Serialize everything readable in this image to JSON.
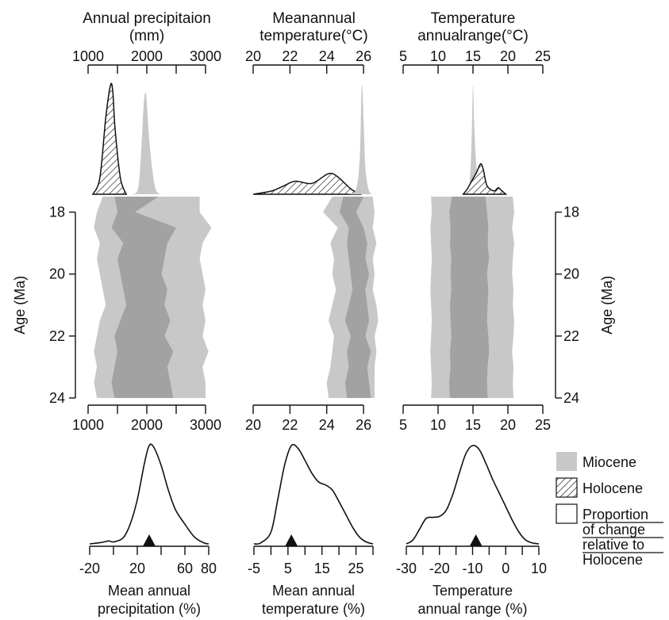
{
  "colors": {
    "miocene": "#c8c8c8",
    "core": "#a2a2a2",
    "hatch": "#111111"
  },
  "legend": {
    "miocene": "Miocene",
    "holocene": "Holocene",
    "proportion": [
      "Proportion",
      "of change",
      "relative to",
      "Holocene"
    ]
  },
  "chart_data": [
    {
      "type": "area",
      "panel": "precipitation-top-density",
      "title": [
        "Annual precipitaion",
        "(mm)"
      ],
      "xlim": [
        1000,
        3000
      ],
      "ticks": [
        1000,
        2000,
        3000
      ],
      "tick_labels": [
        "1000",
        "2000",
        "3000"
      ],
      "series": [
        {
          "name": "Holocene",
          "hatched": true,
          "x": [
            1080,
            1200,
            1300,
            1380,
            1420,
            1460,
            1550,
            1650
          ],
          "y": [
            0,
            0.15,
            0.7,
            1.0,
            0.95,
            0.6,
            0.15,
            0
          ]
        },
        {
          "name": "Miocene",
          "x": [
            1760,
            1850,
            1900,
            1950,
            1990,
            2050,
            2150,
            2300
          ],
          "y": [
            0,
            0.05,
            0.35,
            0.85,
            0.9,
            0.45,
            0.05,
            0
          ]
        }
      ]
    },
    {
      "type": "area",
      "panel": "temperature-top-density",
      "title": [
        "Meanannual",
        "temperature(°C)"
      ],
      "xlim": [
        20,
        26.6
      ],
      "ticks": [
        20,
        22,
        24,
        26
      ],
      "tick_labels": [
        "20",
        "22",
        "24",
        "26"
      ],
      "series": [
        {
          "name": "Holocene",
          "hatched": true,
          "x": [
            20,
            21,
            21.7,
            22.3,
            23.2,
            24.1,
            24.6,
            25.3,
            25.8
          ],
          "y": [
            0,
            0.03,
            0.08,
            0.12,
            0.1,
            0.19,
            0.16,
            0.05,
            0
          ]
        },
        {
          "name": "Miocene",
          "x": [
            25.2,
            25.6,
            25.8,
            25.9,
            26.0,
            26.1,
            26.3,
            26.6
          ],
          "y": [
            0,
            0.05,
            0.35,
            1.0,
            0.7,
            0.25,
            0.03,
            0
          ]
        }
      ]
    },
    {
      "type": "area",
      "panel": "range-top-density",
      "title": [
        "Temperature",
        "annualrange(°C)"
      ],
      "xlim": [
        5,
        25
      ],
      "ticks": [
        5,
        10,
        15,
        20,
        25
      ],
      "tick_labels": [
        "5",
        "10",
        "15",
        "20",
        "25"
      ],
      "series": [
        {
          "name": "Miocene",
          "x": [
            13.8,
            14.5,
            14.8,
            15.0,
            15.2,
            15.6,
            16.5,
            17.5
          ],
          "y": [
            0,
            0.1,
            0.5,
            1.0,
            0.6,
            0.2,
            0.05,
            0
          ]
        },
        {
          "name": "Holocene",
          "hatched": true,
          "x": [
            13.6,
            14.2,
            14.8,
            15.5,
            16.1,
            16.5,
            17.0,
            18.0,
            18.6,
            19.0,
            19.7
          ],
          "y": [
            0,
            0.05,
            0.12,
            0.2,
            0.28,
            0.22,
            0.08,
            0.03,
            0.06,
            0.04,
            0
          ]
        }
      ]
    },
    {
      "type": "area",
      "panel": "precipitation-timeseries",
      "xlim": [
        1000,
        3000
      ],
      "ylim": [
        17.5,
        24
      ],
      "ylabel": "Age (Ma)",
      "yticks": [
        18,
        20,
        22,
        24
      ],
      "ytick_labels": [
        "18",
        "20",
        "22",
        "24"
      ],
      "ticks": [
        1000,
        2000,
        3000
      ],
      "tick_labels": [
        "1000",
        "2000",
        "3000"
      ],
      "age": [
        17.5,
        18,
        18.5,
        19,
        19.5,
        20,
        20.5,
        21,
        21.5,
        22,
        22.5,
        23,
        23.5,
        24
      ],
      "outer_low": [
        1250,
        1150,
        1100,
        1200,
        1150,
        1200,
        1250,
        1300,
        1200,
        1150,
        1100,
        1150,
        1100,
        1150
      ],
      "inner_low": [
        1450,
        1500,
        1400,
        1600,
        1500,
        1550,
        1600,
        1650,
        1550,
        1450,
        1500,
        1450,
        1400,
        1450
      ],
      "inner_high": [
        2200,
        1800,
        2500,
        2350,
        2300,
        2250,
        2350,
        2300,
        2400,
        2300,
        2450,
        2350,
        2400,
        2450
      ],
      "outer_high": [
        2900,
        2900,
        3100,
        2950,
        2900,
        2950,
        3000,
        2950,
        3000,
        2950,
        3050,
        2950,
        3000,
        3000
      ]
    },
    {
      "type": "area",
      "panel": "temperature-timeseries",
      "xlim": [
        20,
        26.6
      ],
      "ylim": [
        17.5,
        24
      ],
      "ticks": [
        20,
        22,
        24,
        26
      ],
      "tick_labels": [
        "20",
        "22",
        "24",
        "26"
      ],
      "age": [
        17.5,
        18,
        18.5,
        19,
        19.5,
        20,
        20.5,
        21,
        21.5,
        22,
        22.5,
        23,
        23.5,
        24
      ],
      "outer_low": [
        24.3,
        23.8,
        24.6,
        24.2,
        24.4,
        24.3,
        24.5,
        24.3,
        24.1,
        24.4,
        24.3,
        24.2,
        24.0,
        24.1
      ],
      "inner_low": [
        24.9,
        24.7,
        25.2,
        25.1,
        25.2,
        25.3,
        25.4,
        25.2,
        25.0,
        25.3,
        25.1,
        25.2,
        25.0,
        25.1
      ],
      "inner_high": [
        26.0,
        25.6,
        26.0,
        26.2,
        26.1,
        26.3,
        26.1,
        26.2,
        26.3,
        26.1,
        26.4,
        26.2,
        26.3,
        26.4
      ],
      "outer_high": [
        26.5,
        26.6,
        26.5,
        26.7,
        26.5,
        26.6,
        26.5,
        26.7,
        26.8,
        26.6,
        26.7,
        26.6,
        26.6,
        26.6
      ]
    },
    {
      "type": "area",
      "panel": "range-timeseries",
      "xlim": [
        5,
        25
      ],
      "ylim": [
        17.5,
        24
      ],
      "ylabel": "Age (Ma)",
      "yticks": [
        18,
        20,
        22,
        24
      ],
      "ytick_labels": [
        "18",
        "20",
        "22",
        "24"
      ],
      "ticks": [
        5,
        10,
        15,
        20,
        25
      ],
      "tick_labels": [
        "5",
        "10",
        "15",
        "20",
        "25"
      ],
      "age": [
        17.5,
        18,
        18.5,
        19,
        19.5,
        20,
        20.5,
        21,
        21.5,
        22,
        22.5,
        23,
        23.5,
        24
      ],
      "outer_low": [
        9.0,
        9.1,
        8.9,
        9.0,
        9.1,
        9.0,
        8.9,
        9.0,
        9.1,
        9.0,
        8.9,
        9.0,
        9.1,
        9.0
      ],
      "inner_low": [
        12.0,
        11.6,
        11.8,
        11.7,
        11.9,
        11.8,
        11.9,
        11.7,
        11.8,
        11.9,
        11.7,
        11.8,
        11.6,
        11.7
      ],
      "inner_high": [
        16.8,
        17.0,
        17.2,
        17.1,
        17.3,
        17.0,
        17.2,
        17.1,
        17.0,
        17.2,
        17.3,
        17.1,
        17.0,
        17.1
      ],
      "outer_high": [
        20.7,
        20.9,
        20.6,
        20.9,
        20.7,
        20.6,
        20.8,
        20.7,
        20.9,
        20.8,
        20.6,
        20.8,
        20.7,
        20.8
      ]
    },
    {
      "type": "line",
      "panel": "precipitation-change-density",
      "xlabel": [
        "Mean annual",
        "precipitation (%)"
      ],
      "xlim": [
        -20,
        80
      ],
      "ticks": [
        -20,
        0,
        20,
        40,
        60,
        80
      ],
      "tick_labels": [
        "-20",
        "",
        "20",
        "",
        "60",
        "80"
      ],
      "marker": 30,
      "x": [
        -20,
        -10,
        -4,
        0,
        8,
        14,
        20,
        26,
        30,
        34,
        40,
        46,
        52,
        60,
        68,
        76,
        80
      ],
      "y": [
        0,
        0.015,
        0.03,
        0.02,
        0.06,
        0.2,
        0.45,
        0.82,
        1.0,
        0.98,
        0.8,
        0.55,
        0.35,
        0.2,
        0.07,
        0.01,
        0
      ]
    },
    {
      "type": "line",
      "panel": "temperature-change-density",
      "xlabel": [
        "Mean annual",
        "temperature (%)"
      ],
      "xlim": [
        -5,
        30
      ],
      "ticks": [
        -5,
        0,
        5,
        10,
        15,
        20,
        25,
        30
      ],
      "tick_labels": [
        "-5",
        "",
        "5",
        "",
        "15",
        "",
        "25",
        ""
      ],
      "marker": 6,
      "x": [
        -5,
        -3,
        0,
        2,
        4,
        6,
        8,
        10,
        12,
        14,
        16,
        18,
        20,
        22,
        24,
        26,
        28,
        30
      ],
      "y": [
        0,
        0.01,
        0.12,
        0.45,
        0.8,
        1.0,
        0.97,
        0.85,
        0.72,
        0.63,
        0.6,
        0.55,
        0.43,
        0.3,
        0.17,
        0.07,
        0.02,
        0
      ]
    },
    {
      "type": "line",
      "panel": "range-change-density",
      "xlabel": [
        "Temperature",
        "annual range (%)"
      ],
      "xlim": [
        -30,
        10
      ],
      "ticks": [
        -30,
        -25,
        -20,
        -15,
        -10,
        -5,
        0,
        5,
        10
      ],
      "tick_labels": [
        "-30",
        "",
        "-20",
        "",
        "-10",
        "",
        "0",
        "",
        "10"
      ],
      "marker": -9,
      "x": [
        -30,
        -28,
        -26,
        -24,
        -22,
        -20,
        -18,
        -16,
        -14,
        -12,
        -10,
        -8,
        -6,
        -4,
        -2,
        0,
        2,
        4,
        6,
        8,
        10
      ],
      "y": [
        0,
        0.04,
        0.15,
        0.26,
        0.27,
        0.28,
        0.34,
        0.5,
        0.72,
        0.92,
        1.0,
        0.96,
        0.82,
        0.66,
        0.52,
        0.38,
        0.24,
        0.12,
        0.04,
        0.01,
        0
      ]
    }
  ]
}
